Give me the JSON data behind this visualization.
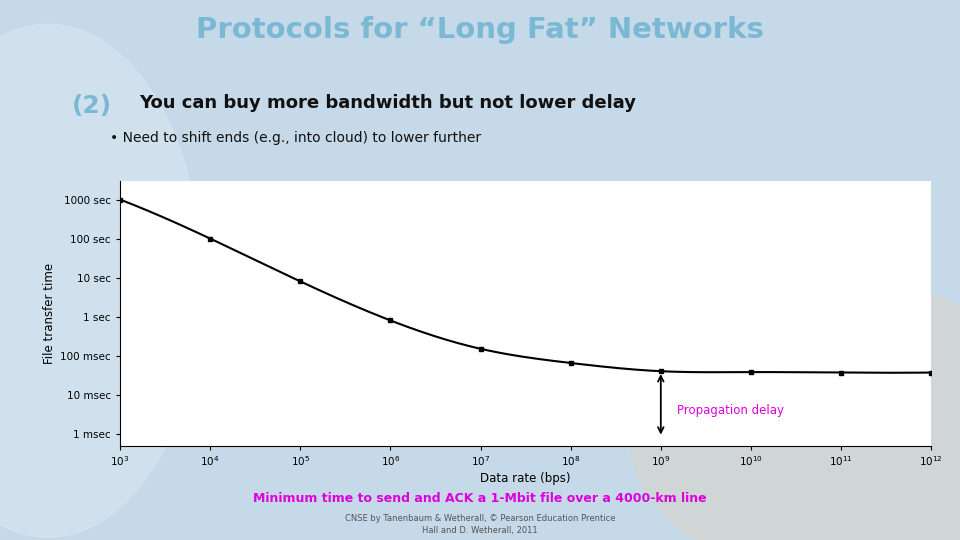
{
  "title_line1": "Protocols for “Long Fat” Networks",
  "title_line2": "(2)",
  "subtitle": "You can buy more bandwidth but not lower delay",
  "bullet": "Need to shift ends (e.g., into cloud) to lower further",
  "caption": "Minimum time to send and ACK a 1-Mbit file over a 4000-km line",
  "footnote1": "CNSE by Tanenbaum & Wetherall, © Pearson Education Prentice",
  "footnote2": "Hall and D. Wetherall, 2011",
  "xlabel": "Data rate (bps)",
  "ylabel": "File transfer time",
  "propagation_label": "Propagation delay",
  "x_data": [
    1000.0,
    10000.0,
    100000.0,
    1000000.0,
    10000000.0,
    100000000.0,
    1000000000.0,
    10000000000.0,
    100000000000.0,
    1000000000000.0
  ],
  "y_data": [
    1000,
    100,
    8,
    0.8,
    0.15,
    0.065,
    0.04,
    0.038,
    0.037,
    0.037
  ],
  "ytick_labels": [
    "1 msec",
    "10 msec",
    "100 msec",
    "1 sec",
    "10 sec",
    "100 sec",
    "1000 sec"
  ],
  "ytick_values": [
    0.001,
    0.01,
    0.1,
    1,
    10,
    100,
    1000
  ],
  "xlim": [
    1000.0,
    1000000000000.0
  ],
  "ylim": [
    0.0005,
    3000
  ],
  "title_color": "#7ab8d4",
  "subtitle_color": "#111111",
  "bullet_color": "#111111",
  "caption_color": "#dd00dd",
  "propagation_color": "#dd00dd",
  "line_color": "#000000",
  "marker_color": "#000000",
  "arrow_color": "#000000",
  "chart_bg": "#ffffff"
}
